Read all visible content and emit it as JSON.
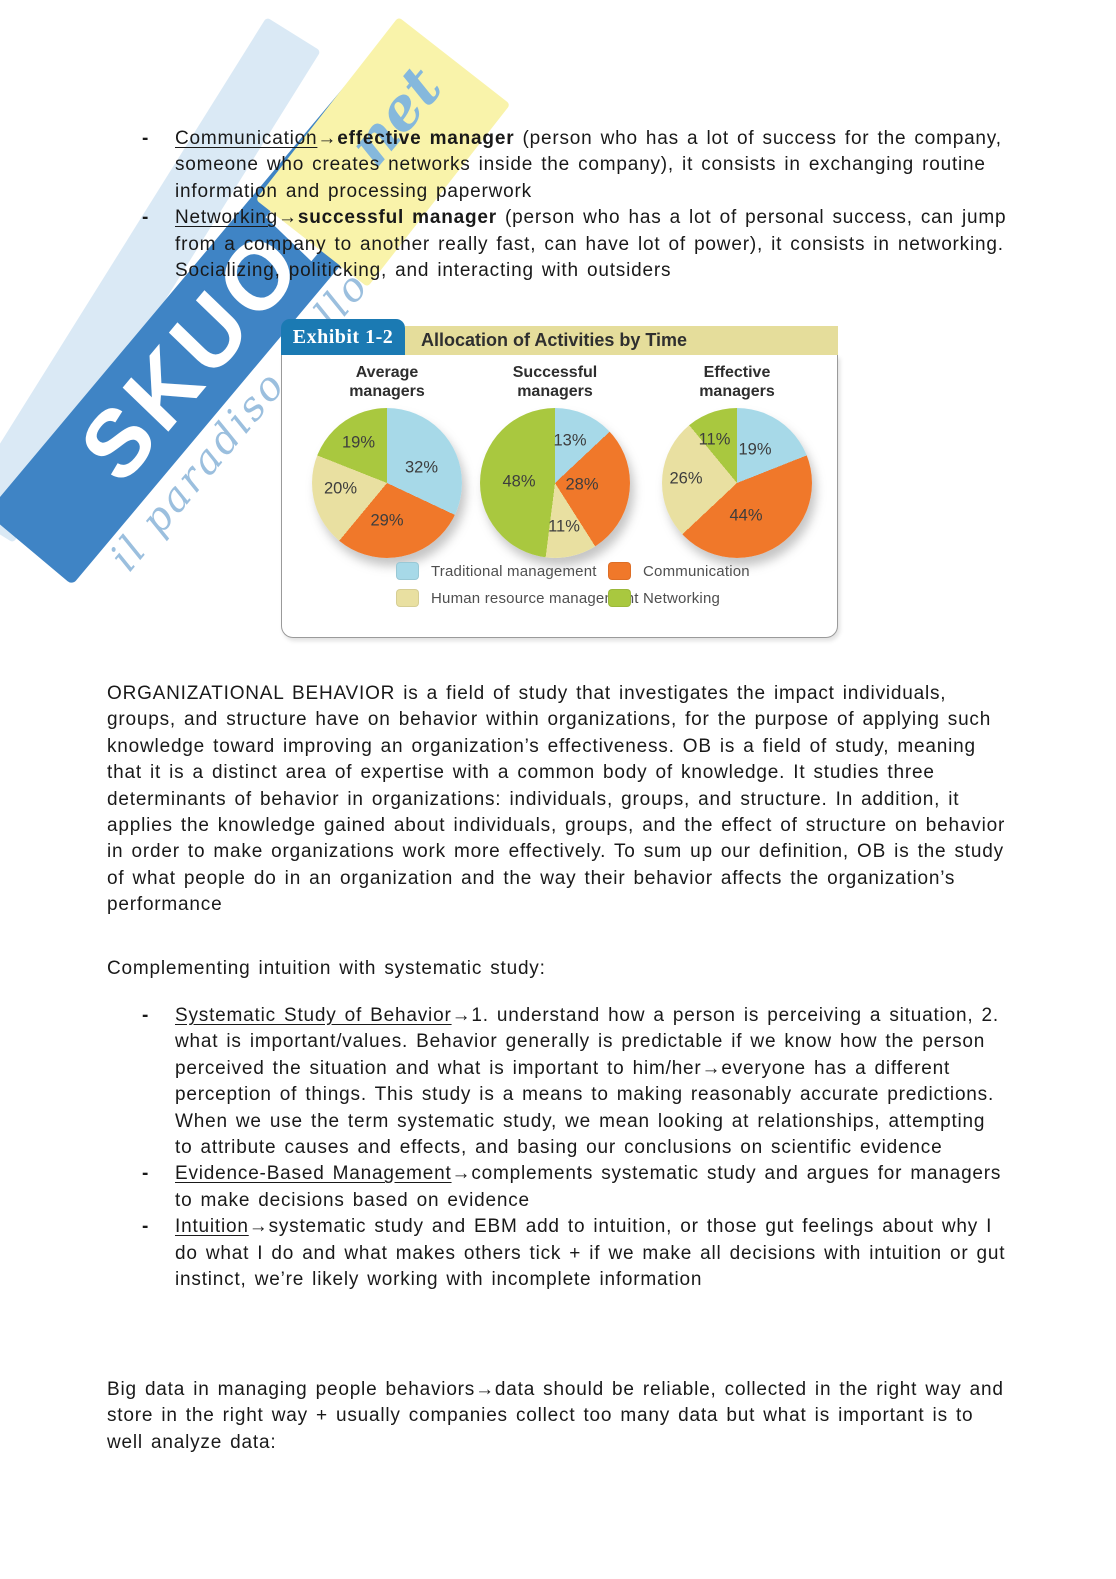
{
  "watermark": {
    "brand": "SKUOLA",
    "suffix": "net",
    "tagline": "il paradiso dello",
    "band_color": "#3f84c5",
    "tag_color": "#f9f3aa",
    "script_color": "#89b4d8"
  },
  "ui": {
    "bullet_marker": "-",
    "arrow": "→"
  },
  "top_bullets": [
    {
      "term": "Communication",
      "arrow": "→",
      "bold": "effective manager",
      "rest": " (person who has a lot of success for the company, someone who creates networks inside the company), it consists in exchanging routine information and processing paperwork"
    },
    {
      "term": "Networking",
      "arrow": "→",
      "bold": "successful manager",
      "rest": " (person who has a lot of personal success, can jump from a company to another really fast, can have lot of power), it consists in networking. Socializing, politicking, and interacting with outsiders"
    }
  ],
  "exhibit": {
    "tab": "Exhibit 1-2",
    "title": "Allocation of Activities by Time",
    "colors": {
      "tab_bg": "#1b7ab3",
      "titlebar_bg": "#e5dd9b",
      "border": "#9a9a9a"
    },
    "legend": [
      {
        "label": "Traditional management",
        "color": "#a7d9e8"
      },
      {
        "label": "Communication",
        "color": "#f0782a"
      },
      {
        "label": "Human resource management",
        "color": "#e9e0a1"
      },
      {
        "label": "Networking",
        "color": "#a9c83f"
      }
    ]
  },
  "chart_data": [
    {
      "type": "pie",
      "title": "Average managers",
      "categories": [
        "Traditional management",
        "Communication",
        "Human resource management",
        "Networking"
      ],
      "values": [
        32,
        29,
        20,
        19
      ],
      "unit": "%",
      "labels": [
        "32%",
        "29%",
        "20%",
        "19%"
      ],
      "colors": [
        "#a7d9e8",
        "#f0782a",
        "#e9e0a1",
        "#a9c83f"
      ],
      "start_angle_deg": 0,
      "direction": "clockwise",
      "legend_position": "bottom-shared",
      "label_positions": [
        [
          73,
          40
        ],
        [
          50,
          75
        ],
        [
          19,
          54
        ],
        [
          31,
          23
        ]
      ]
    },
    {
      "type": "pie",
      "title": "Successful managers",
      "categories": [
        "Traditional management",
        "Communication",
        "Human resource management",
        "Networking"
      ],
      "values": [
        13,
        28,
        11,
        48
      ],
      "unit": "%",
      "labels": [
        "13%",
        "28%",
        "11%",
        "48%"
      ],
      "colors": [
        "#a7d9e8",
        "#f0782a",
        "#e9e0a1",
        "#a9c83f"
      ],
      "start_angle_deg": 0,
      "direction": "clockwise",
      "legend_position": "bottom-shared",
      "label_positions": [
        [
          60,
          22
        ],
        [
          68,
          51
        ],
        [
          56,
          79
        ],
        [
          26,
          49
        ]
      ]
    },
    {
      "type": "pie",
      "title": "Effective managers",
      "categories": [
        "Traditional management",
        "Communication",
        "Human resource management",
        "Networking"
      ],
      "values": [
        19,
        44,
        26,
        11
      ],
      "unit": "%",
      "labels": [
        "19%",
        "44%",
        "26%",
        "11%"
      ],
      "colors": [
        "#a7d9e8",
        "#f0782a",
        "#e9e0a1",
        "#a9c83f"
      ],
      "start_angle_deg": 0,
      "direction": "clockwise",
      "legend_position": "bottom-shared",
      "label_positions": [
        [
          62,
          28
        ],
        [
          56,
          72
        ],
        [
          16,
          47
        ],
        [
          35,
          21
        ]
      ]
    }
  ],
  "sections": {
    "ob_paragraph": "ORGANIZATIONAL BEHAVIOR is a field of study that investigates the impact individuals, groups, and structure have on behavior within organizations, for the purpose of applying such knowledge toward improving an organization’s effectiveness. OB is a field of study, meaning that it is a distinct area of expertise with a common body of knowledge. It studies three determinants of behavior in organizations: individuals, groups, and structure. In addition, it applies the knowledge gained about individuals, groups, and the effect of structure on behavior in order to make organizations work more effectively. To sum up our definition, OB is the study of what people do in an organization and the way their behavior affects the organization’s performance",
    "complementing_heading": "Complementing intuition with systematic study:",
    "study_bullets": [
      {
        "term": "Systematic Study of Behavior",
        "arrow": "→",
        "rest": "1. understand how a person is perceiving a situation, 2. what is important/values. Behavior generally is predictable if we know how the person perceived the situation and what is important to him/her→everyone has a different perception of things. This study is a means to making reasonably accurate predictions. When we use the term systematic study, we mean looking at relationships, attempting to attribute causes and effects, and basing our conclusions on scientific evidence"
      },
      {
        "term": "Evidence-Based Management",
        "arrow": "→",
        "rest": "complements systematic study and argues for managers to make decisions based on evidence"
      },
      {
        "term": "Intuition",
        "arrow": "→",
        "rest": "systematic study and EBM add to intuition, or those gut feelings about why I do what I do and what makes others tick + if we make all decisions with intuition or gut instinct, we’re likely working with incomplete information"
      }
    ],
    "big_data_paragraph": "Big data in managing people behaviors→data should be reliable, collected in the right way and store in the right way + usually companies collect too many data but what is important is to well analyze data:"
  }
}
